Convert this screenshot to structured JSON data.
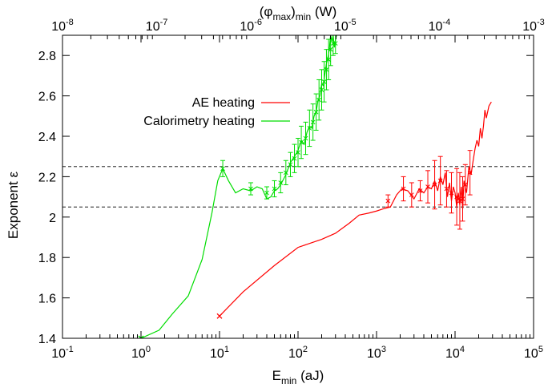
{
  "chart_data": {
    "type": "line",
    "title": "",
    "xlabel_base": "E",
    "xlabel_sub": "min",
    "xlabel_tail": " (aJ)",
    "x2label_pre": "(φ",
    "x2label_sub1": "max",
    "x2label_mid": ")",
    "x2label_sub2": "min",
    "x2label_tail": " (W)",
    "ylabel": "Exponent  ε",
    "x_scale": "log",
    "x_range": [
      0.1,
      100000
    ],
    "x_ticks": [
      {
        "value": 0.1,
        "base": "10",
        "exp": "-1"
      },
      {
        "value": 1,
        "base": "10",
        "exp": "0"
      },
      {
        "value": 10,
        "base": "10",
        "exp": "1"
      },
      {
        "value": 100,
        "base": "10",
        "exp": "2"
      },
      {
        "value": 1000,
        "base": "10",
        "exp": "3"
      },
      {
        "value": 10000,
        "base": "10",
        "exp": "4"
      },
      {
        "value": 100000,
        "base": "10",
        "exp": "5"
      }
    ],
    "x2_scale": "log",
    "x2_range": [
      1e-08,
      0.001
    ],
    "x2_ticks": [
      {
        "value": 1e-08,
        "base": "10",
        "exp": "-8"
      },
      {
        "value": 1e-07,
        "base": "10",
        "exp": "-7"
      },
      {
        "value": 1e-06,
        "base": "10",
        "exp": "-6"
      },
      {
        "value": 1e-05,
        "base": "10",
        "exp": "-5"
      },
      {
        "value": 0.0001,
        "base": "10",
        "exp": "-4"
      },
      {
        "value": 0.001,
        "base": "10",
        "exp": "-3"
      }
    ],
    "y_range": [
      1.4,
      2.9
    ],
    "y_ticks": [
      {
        "value": 1.4,
        "label": "1.4"
      },
      {
        "value": 1.6,
        "label": "1.6"
      },
      {
        "value": 1.8,
        "label": "1.8"
      },
      {
        "value": 2.0,
        "label": "2"
      },
      {
        "value": 2.2,
        "label": "2.2"
      },
      {
        "value": 2.4,
        "label": "2.4"
      },
      {
        "value": 2.6,
        "label": "2.6"
      },
      {
        "value": 2.8,
        "label": "2.8"
      }
    ],
    "reference_lines": [
      2.25,
      2.05
    ],
    "legend_position": "upper-left",
    "series": [
      {
        "name": "AE heating",
        "color": "#ff0000",
        "points": [
          [
            10,
            1.51
          ],
          [
            20,
            1.63
          ],
          [
            50,
            1.76
          ],
          [
            100,
            1.85
          ],
          [
            200,
            1.89
          ],
          [
            300,
            1.92
          ],
          [
            450,
            1.97
          ],
          [
            600,
            2.01
          ],
          [
            800,
            2.02
          ],
          [
            1000,
            2.03
          ],
          [
            1200,
            2.04
          ],
          [
            1500,
            2.05
          ],
          [
            1800,
            2.11
          ],
          [
            2100,
            2.14
          ],
          [
            2500,
            2.13
          ],
          [
            3000,
            2.09
          ],
          [
            3500,
            2.14
          ],
          [
            4000,
            2.12
          ],
          [
            4500,
            2.15
          ],
          [
            5000,
            2.14
          ],
          [
            5500,
            2.18
          ],
          [
            6000,
            2.13
          ],
          [
            6500,
            2.2
          ],
          [
            7000,
            2.16
          ],
          [
            7500,
            2.22
          ],
          [
            8000,
            2.1
          ],
          [
            8500,
            2.17
          ],
          [
            9000,
            2.08
          ],
          [
            9500,
            2.15
          ],
          [
            10000,
            2.12
          ],
          [
            10500,
            2.05
          ],
          [
            11000,
            2.12
          ],
          [
            11500,
            2.06
          ],
          [
            12000,
            2.15
          ],
          [
            12500,
            2.04
          ],
          [
            13000,
            2.18
          ],
          [
            14000,
            2.12
          ],
          [
            15000,
            2.25
          ],
          [
            16000,
            2.21
          ],
          [
            17000,
            2.28
          ],
          [
            18000,
            2.34
          ],
          [
            19000,
            2.38
          ],
          [
            20000,
            2.35
          ],
          [
            21000,
            2.44
          ],
          [
            22000,
            2.39
          ],
          [
            23000,
            2.45
          ],
          [
            24000,
            2.53
          ],
          [
            25000,
            2.49
          ],
          [
            27000,
            2.55
          ],
          [
            29000,
            2.57
          ]
        ],
        "error_bars": [
          {
            "x": 1400,
            "y": 2.08,
            "err": 0.03
          },
          {
            "x": 2200,
            "y": 2.14,
            "err": 0.06
          },
          {
            "x": 2800,
            "y": 2.11,
            "err": 0.06
          },
          {
            "x": 3600,
            "y": 2.13,
            "err": 0.05
          },
          {
            "x": 4500,
            "y": 2.15,
            "err": 0.08
          },
          {
            "x": 5500,
            "y": 2.16,
            "err": 0.12
          },
          {
            "x": 6500,
            "y": 2.18,
            "err": 0.12
          },
          {
            "x": 7800,
            "y": 2.14,
            "err": 0.09
          },
          {
            "x": 9000,
            "y": 2.12,
            "err": 0.1
          },
          {
            "x": 10500,
            "y": 2.1,
            "err": 0.14
          },
          {
            "x": 11500,
            "y": 2.08,
            "err": 0.14
          },
          {
            "x": 12500,
            "y": 2.09,
            "err": 0.11
          },
          {
            "x": 13500,
            "y": 2.16,
            "err": 0.1
          },
          {
            "x": 15500,
            "y": 2.22,
            "err": 0.11
          }
        ]
      },
      {
        "name": "Calorimetry heating",
        "color": "#00dd00",
        "points": [
          [
            1.0,
            1.4
          ],
          [
            1.7,
            1.44
          ],
          [
            2.5,
            1.52
          ],
          [
            4.0,
            1.61
          ],
          [
            6.0,
            1.79
          ],
          [
            8.0,
            2.02
          ],
          [
            9.5,
            2.18
          ],
          [
            11,
            2.24
          ],
          [
            13,
            2.18
          ],
          [
            16,
            2.12
          ],
          [
            20,
            2.14
          ],
          [
            25,
            2.13
          ],
          [
            30,
            2.15
          ],
          [
            35,
            2.14
          ],
          [
            40,
            2.09
          ],
          [
            45,
            2.1
          ],
          [
            50,
            2.13
          ],
          [
            55,
            2.14
          ],
          [
            60,
            2.16
          ],
          [
            70,
            2.21
          ],
          [
            80,
            2.27
          ],
          [
            90,
            2.3
          ],
          [
            100,
            2.33
          ],
          [
            110,
            2.38
          ],
          [
            120,
            2.36
          ],
          [
            130,
            2.42
          ],
          [
            140,
            2.45
          ],
          [
            150,
            2.44
          ],
          [
            160,
            2.5
          ],
          [
            170,
            2.52
          ],
          [
            180,
            2.58
          ],
          [
            190,
            2.6
          ],
          [
            200,
            2.66
          ],
          [
            210,
            2.65
          ],
          [
            220,
            2.71
          ],
          [
            230,
            2.76
          ],
          [
            240,
            2.79
          ],
          [
            250,
            2.83
          ],
          [
            260,
            2.9
          ],
          [
            270,
            2.87
          ],
          [
            280,
            2.9
          ],
          [
            290,
            2.84
          ],
          [
            300,
            2.88
          ],
          [
            310,
            2.9
          ]
        ],
        "error_bars": [
          {
            "x": 11,
            "y": 2.24,
            "err": 0.04
          },
          {
            "x": 25,
            "y": 2.14,
            "err": 0.03
          },
          {
            "x": 40,
            "y": 2.12,
            "err": 0.03
          },
          {
            "x": 50,
            "y": 2.14,
            "err": 0.04
          },
          {
            "x": 60,
            "y": 2.17,
            "err": 0.05
          },
          {
            "x": 70,
            "y": 2.22,
            "err": 0.06
          },
          {
            "x": 80,
            "y": 2.26,
            "err": 0.06
          },
          {
            "x": 90,
            "y": 2.29,
            "err": 0.07
          },
          {
            "x": 100,
            "y": 2.32,
            "err": 0.07
          },
          {
            "x": 110,
            "y": 2.37,
            "err": 0.08
          },
          {
            "x": 125,
            "y": 2.39,
            "err": 0.08
          },
          {
            "x": 140,
            "y": 2.44,
            "err": 0.09
          },
          {
            "x": 155,
            "y": 2.47,
            "err": 0.09
          },
          {
            "x": 170,
            "y": 2.52,
            "err": 0.09
          },
          {
            "x": 185,
            "y": 2.58,
            "err": 0.1
          },
          {
            "x": 200,
            "y": 2.63,
            "err": 0.1
          },
          {
            "x": 215,
            "y": 2.67,
            "err": 0.1
          },
          {
            "x": 230,
            "y": 2.73,
            "err": 0.1
          },
          {
            "x": 245,
            "y": 2.78,
            "err": 0.1
          },
          {
            "x": 260,
            "y": 2.83,
            "err": 0.08
          },
          {
            "x": 280,
            "y": 2.86,
            "err": 0.06
          },
          {
            "x": 300,
            "y": 2.86,
            "err": 0.05
          }
        ]
      }
    ]
  }
}
